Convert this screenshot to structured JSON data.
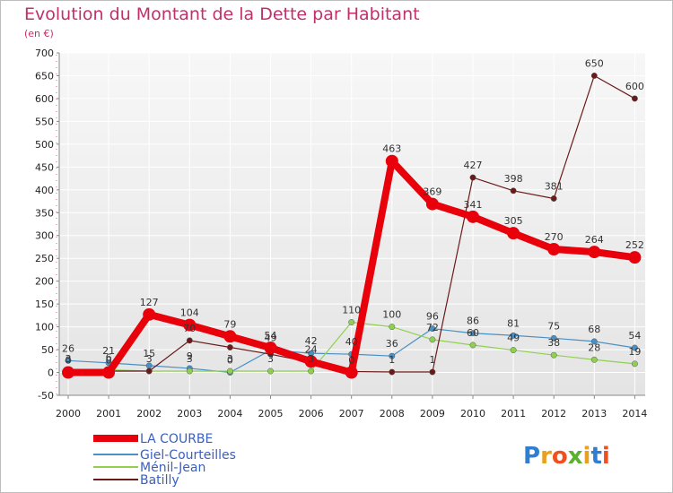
{
  "chart_data": {
    "type": "line",
    "title": "Evolution du Montant de la Dette par Habitant",
    "subtitle": "(en €)",
    "x": [
      "2000",
      "2001",
      "2002",
      "2003",
      "2004",
      "2005",
      "2006",
      "2007",
      "2008",
      "2009",
      "2010",
      "2011",
      "2012",
      "2013",
      "2014"
    ],
    "ylim": [
      -50,
      700
    ],
    "yticks": [
      -50,
      0,
      50,
      100,
      150,
      200,
      250,
      300,
      350,
      400,
      450,
      500,
      550,
      600,
      650,
      700
    ],
    "grid": true,
    "legend_position": "bottom-left",
    "series": [
      {
        "name": "LA COURBE",
        "color": "#e8000b",
        "values": [
          0,
          0,
          127,
          104,
          79,
          54,
          24,
          0,
          463,
          369,
          341,
          305,
          270,
          264,
          252
        ],
        "labels": [
          "0",
          "0",
          "127",
          "104",
          "79",
          "54",
          "24",
          "0",
          "463",
          "369",
          "341",
          "305",
          "270",
          "264",
          "252"
        ]
      },
      {
        "name": "Giel-Courteilles",
        "color": "#4a90c4",
        "values": [
          26,
          21,
          15,
          9,
          0,
          49,
          42,
          40,
          36,
          96,
          86,
          81,
          75,
          68,
          54
        ],
        "labels": [
          "26",
          "21",
          "15",
          "9",
          "0",
          "49",
          "42",
          "40",
          "36",
          "96",
          "86",
          "81",
          "75",
          "68",
          "54"
        ]
      },
      {
        "name": "Ménil-Jean",
        "color": "#8fd14f",
        "values": [
          3,
          6,
          3,
          3,
          3,
          3,
          3,
          110,
          100,
          72,
          60,
          49,
          38,
          28,
          19
        ],
        "labels": [
          "3",
          "6",
          "3",
          "3",
          "3",
          "3",
          "3",
          "110",
          "100",
          "72",
          "60",
          "49",
          "38",
          "28",
          "19"
        ]
      },
      {
        "name": "Batilly",
        "color": "#6b1a1a",
        "values": [
          3,
          3,
          3,
          70,
          55,
          40,
          22,
          2,
          1,
          1,
          427,
          398,
          381,
          650,
          600
        ],
        "labels": [
          "",
          "",
          "",
          "70",
          "",
          "",
          "",
          "",
          "1",
          "1",
          "427",
          "398",
          "381",
          "650",
          "600"
        ]
      }
    ]
  },
  "logo": {
    "text": "Proxiti"
  }
}
